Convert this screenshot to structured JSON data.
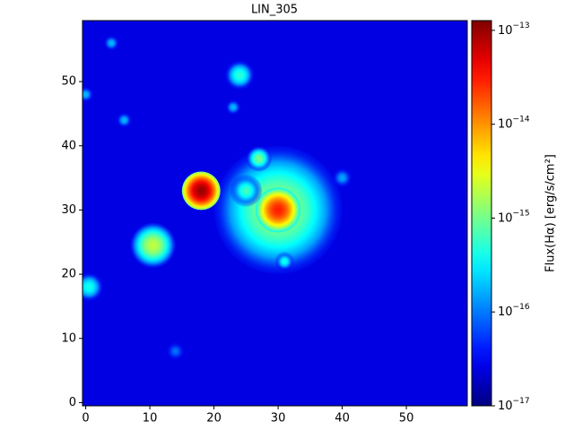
{
  "chart_data": {
    "type": "image",
    "title": "LIN_305",
    "xlim": [
      -0.5,
      59.5
    ],
    "ylim": [
      -0.5,
      59.5
    ],
    "xticks": [
      0,
      10,
      20,
      30,
      40,
      50
    ],
    "yticks": [
      0,
      10,
      20,
      30,
      40,
      50
    ],
    "colormap": "jet",
    "color_scale": "log",
    "clim": [
      1e-17,
      1.27e-13
    ],
    "colorbar_label": "Flux(Hα) [erg/s/cm²]",
    "colorbar_ticks": [
      {
        "value": 1e-17,
        "label": "10−17"
      },
      {
        "value": 1e-16,
        "label": "10−16"
      },
      {
        "value": 1e-15,
        "label": "10−15"
      },
      {
        "value": 1e-14,
        "label": "10−14"
      },
      {
        "value": 1e-13,
        "label": "10−13"
      }
    ],
    "background": 2.5e-17,
    "sources": [
      {
        "x": 30,
        "y": 30,
        "flux": 1.5e-15,
        "radius": 10
      },
      {
        "x": 30,
        "y": 30,
        "flux": 3e-14,
        "radius": 3.5
      },
      {
        "x": 18,
        "y": 33,
        "flux": 1e-13,
        "radius": 3
      },
      {
        "x": 10.5,
        "y": 24.5,
        "flux": 2e-15,
        "radius": 3.5
      },
      {
        "x": 27,
        "y": 38,
        "flux": 1e-15,
        "radius": 2
      },
      {
        "x": 24,
        "y": 51,
        "flux": 5e-16,
        "radius": 2.5
      },
      {
        "x": 0.5,
        "y": 18,
        "flux": 4e-16,
        "radius": 2.5
      },
      {
        "x": 25,
        "y": 33,
        "flux": 6e-16,
        "radius": 2.5
      },
      {
        "x": 4,
        "y": 56,
        "flux": 1.5e-16,
        "radius": 1.5
      },
      {
        "x": 6,
        "y": 44,
        "flux": 1.5e-16,
        "radius": 1.5
      },
      {
        "x": 0,
        "y": 48,
        "flux": 1.5e-16,
        "radius": 1.5
      },
      {
        "x": 23,
        "y": 46,
        "flux": 1.5e-16,
        "radius": 1.5
      },
      {
        "x": 31,
        "y": 22,
        "flux": 4e-16,
        "radius": 1.5
      },
      {
        "x": 40,
        "y": 35,
        "flux": 1.2e-16,
        "radius": 2
      },
      {
        "x": 14,
        "y": 8,
        "flux": 8e-17,
        "radius": 2
      }
    ]
  }
}
